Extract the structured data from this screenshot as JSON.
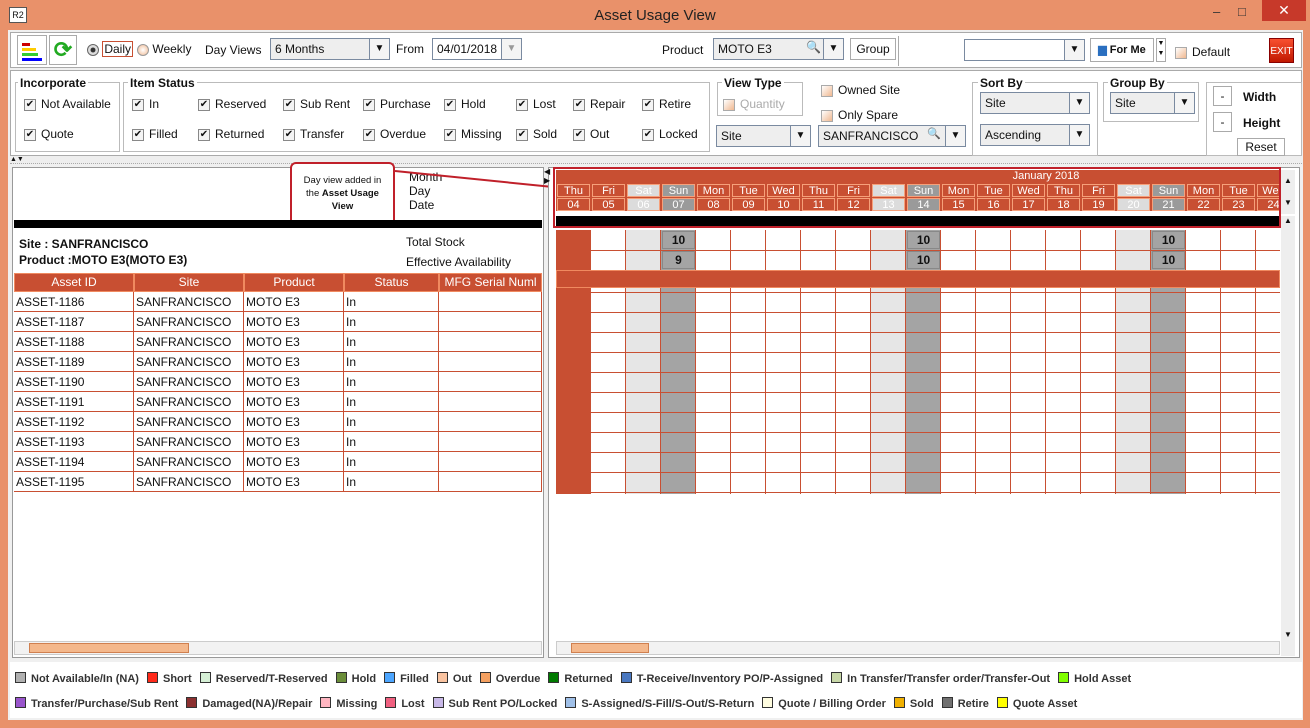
{
  "window": {
    "title": "Asset Usage View",
    "app_icon": "R2",
    "minimize": "–",
    "maximize": "□",
    "close": "✕"
  },
  "toolbar": {
    "daily": "Daily",
    "weekly": "Weekly",
    "day_views_label": "Day Views",
    "day_views_value": "6 Months",
    "from_label": "From",
    "from_value": "04/01/2018",
    "product_label": "Product",
    "product_value": "MOTO E3",
    "group_button": "Group",
    "saved_view_value": "",
    "for_me": "For Me",
    "default_label": "Default",
    "exit": "EXIT"
  },
  "incorporate": {
    "title": "Incorporate",
    "items": [
      "Not Available",
      "Quote"
    ]
  },
  "item_status": {
    "title": "Item Status",
    "row1": [
      "In",
      "Reserved",
      "Sub Rent",
      "Purchase",
      "Hold",
      "Lost",
      "Repair",
      "Retire"
    ],
    "row2": [
      "Filled",
      "Returned",
      "Transfer",
      "Overdue",
      "Missing",
      "Sold",
      "Out",
      "Locked"
    ]
  },
  "view_type": {
    "title": "View Type",
    "quantity": "Quantity",
    "select": "Site",
    "owned_site": "Owned Site",
    "only_spare": "Only Spare",
    "site_value": "SANFRANCISCO"
  },
  "sort_by": {
    "title": "Sort By",
    "field": "Site",
    "order": "Ascending"
  },
  "group_by": {
    "title": "Group By",
    "field": "Site"
  },
  "size": {
    "minus": "-",
    "width": "Width",
    "height": "Height",
    "reset": "Reset"
  },
  "annotation": {
    "line1": "Day view added in",
    "line2_pre": "the ",
    "line2_bold": "Asset Usage",
    "line3": "View"
  },
  "header_labels": {
    "month": "Month",
    "day": "Day",
    "date": "Date"
  },
  "group_info": {
    "site": "Site : SANFRANCISCO",
    "product": "Product :MOTO E3(MOTO E3)",
    "total_stock": "Total Stock",
    "effective": "Effective Availability"
  },
  "table": {
    "columns": [
      "Asset ID",
      "Site",
      "Product",
      "Status",
      "MFG Serial Numl"
    ],
    "rows": [
      [
        "ASSET-1186",
        "SANFRANCISCO",
        "MOTO E3",
        "In",
        ""
      ],
      [
        "ASSET-1187",
        "SANFRANCISCO",
        "MOTO E3",
        "In",
        ""
      ],
      [
        "ASSET-1188",
        "SANFRANCISCO",
        "MOTO E3",
        "In",
        ""
      ],
      [
        "ASSET-1189",
        "SANFRANCISCO",
        "MOTO E3",
        "In",
        ""
      ],
      [
        "ASSET-1190",
        "SANFRANCISCO",
        "MOTO E3",
        "In",
        ""
      ],
      [
        "ASSET-1191",
        "SANFRANCISCO",
        "MOTO E3",
        "In",
        ""
      ],
      [
        "ASSET-1192",
        "SANFRANCISCO",
        "MOTO E3",
        "In",
        ""
      ],
      [
        "ASSET-1193",
        "SANFRANCISCO",
        "MOTO E3",
        "In",
        ""
      ],
      [
        "ASSET-1194",
        "SANFRANCISCO",
        "MOTO E3",
        "In",
        ""
      ],
      [
        "ASSET-1195",
        "SANFRANCISCO",
        "MOTO E3",
        "In",
        ""
      ]
    ]
  },
  "calendar": {
    "month": "January 2018",
    "days": [
      [
        "Thu",
        "04"
      ],
      [
        "Fri",
        "05"
      ],
      [
        "Sat",
        "06"
      ],
      [
        "Sun",
        "07"
      ],
      [
        "Mon",
        "08"
      ],
      [
        "Tue",
        "09"
      ],
      [
        "Wed",
        "10"
      ],
      [
        "Thu",
        "11"
      ],
      [
        "Fri",
        "12"
      ],
      [
        "Sat",
        "13"
      ],
      [
        "Sun",
        "14"
      ],
      [
        "Mon",
        "15"
      ],
      [
        "Tue",
        "16"
      ],
      [
        "Wed",
        "17"
      ],
      [
        "Thu",
        "18"
      ],
      [
        "Fri",
        "19"
      ],
      [
        "Sat",
        "20"
      ],
      [
        "Sun",
        "21"
      ],
      [
        "Mon",
        "22"
      ],
      [
        "Tue",
        "23"
      ],
      [
        "Wed",
        "24"
      ]
    ],
    "total_stock": {
      "07": "10",
      "14": "10",
      "21": "10"
    },
    "effective": {
      "07": "9",
      "14": "10",
      "21": "10"
    }
  },
  "colors": {
    "accent": "#c84f32",
    "weekend_sat": "#e6e6e6",
    "weekend_sun": "#a4a4a4"
  },
  "legend": [
    [
      [
        "Not Available/In (NA)",
        "#b0b0b0"
      ],
      [
        "Short",
        "#ff2a1a"
      ],
      [
        "Reserved/T-Reserved",
        "#d6f0d6"
      ],
      [
        "Hold",
        "#6b8e3a"
      ],
      [
        "Filled",
        "#4da6ff"
      ],
      [
        "Out",
        "#f9c3a0"
      ],
      [
        "Overdue",
        "#f4a060"
      ],
      [
        "Returned",
        "#007a00"
      ],
      [
        "T-Receive/Inventory PO/P-Assigned",
        "#4a78c0"
      ],
      [
        "In Transfer/Transfer order/Transfer-Out",
        "#c8d8a8"
      ],
      [
        "Hold Asset",
        "#80ff00"
      ]
    ],
    [
      [
        "Transfer/Purchase/Sub Rent",
        "#9955cc"
      ],
      [
        "Damaged(NA)/Repair",
        "#8b3030"
      ],
      [
        "Missing",
        "#ffb6c1"
      ],
      [
        "Lost",
        "#f06080"
      ],
      [
        "Sub Rent PO/Locked",
        "#c8b8e8"
      ],
      [
        "S-Assigned/S-Fill/S-Out/S-Return",
        "#a0c0e8"
      ],
      [
        "Quote / Billing Order",
        "#fffde0"
      ],
      [
        "Sold",
        "#f0b000"
      ],
      [
        "Retire",
        "#707070"
      ],
      [
        "Quote Asset",
        "#ffff00"
      ]
    ]
  ]
}
